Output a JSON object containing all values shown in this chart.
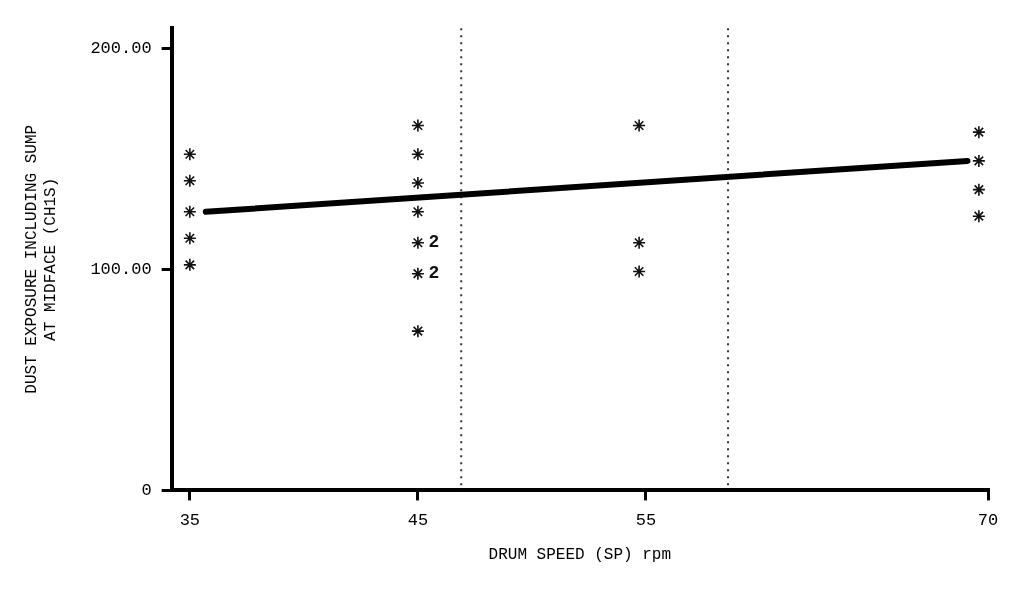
{
  "chart_data": {
    "type": "scatter",
    "xlabel": "DRUM SPEED (SP) rpm",
    "ylabel": "DUST EXPOSURE INCLUDING SUMP\nAT MIDFACE (CH1S)",
    "xlim": [
      34.2,
      70
    ],
    "xticks": [
      35,
      45,
      55,
      70
    ],
    "ylim": [
      0,
      209
    ],
    "yticks": [
      0,
      {
        "value": 100,
        "label": "100.00"
      },
      {
        "value": 200,
        "label": "200.00"
      }
    ],
    "grid": false,
    "legend": false,
    "marker": "cross",
    "series": [
      {
        "color": "#111111",
        "x": [
          35,
          35,
          35,
          35,
          35,
          45,
          45,
          45,
          45,
          45,
          45,
          45,
          54.7,
          54.7,
          54.7,
          69.6,
          69.6,
          69.6,
          69.6
        ],
        "values": [
          152,
          140,
          126,
          114,
          102,
          165,
          152,
          139,
          126,
          112,
          98,
          72,
          165,
          112,
          99,
          162,
          149,
          136,
          124
        ]
      },
      {
        "type": "line",
        "color": "#000000",
        "x": [
          35.7,
          69.1
        ],
        "values": [
          126,
          149
        ],
        "marker": "none"
      }
    ],
    "annotations": [
      {
        "text": "2",
        "x": 45,
        "y": 112
      },
      {
        "text": "2",
        "x": 45,
        "y": 98
      }
    ],
    "ref_lines": [
      {
        "axis": "x",
        "value": 46.9,
        "color": "#333333",
        "line_style": "dotted"
      },
      {
        "axis": "x",
        "value": 58.6,
        "color": "#333333",
        "line_style": "dotted"
      }
    ]
  }
}
